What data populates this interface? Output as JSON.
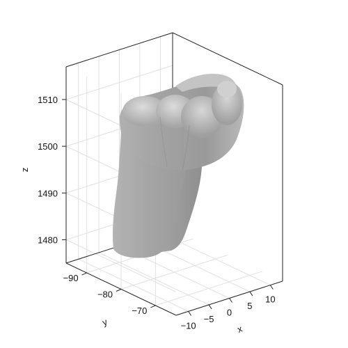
{
  "chart_data": {
    "type": "surface3d",
    "title": "",
    "xlabel": "x",
    "ylabel": "y",
    "zlabel": "z",
    "x_ticks": [
      -10,
      -5,
      0,
      5,
      10
    ],
    "x_tick_labels": [
      "−10",
      "−5",
      "0",
      "5",
      "10"
    ],
    "y_ticks": [
      -70,
      -80,
      -90
    ],
    "y_tick_labels": [
      "−70",
      "−80",
      "−90"
    ],
    "z_ticks": [
      1480,
      1490,
      1500,
      1510
    ],
    "z_tick_labels": [
      "1480",
      "1490",
      "1500",
      "1510"
    ],
    "xlim": [
      -13,
      13
    ],
    "ylim": [
      -96,
      -64
    ],
    "zlim": [
      1475,
      1517
    ],
    "grid": true,
    "surface": {
      "description_color": "#a9a9a9",
      "shading_color": "#cfcfcf"
    }
  }
}
